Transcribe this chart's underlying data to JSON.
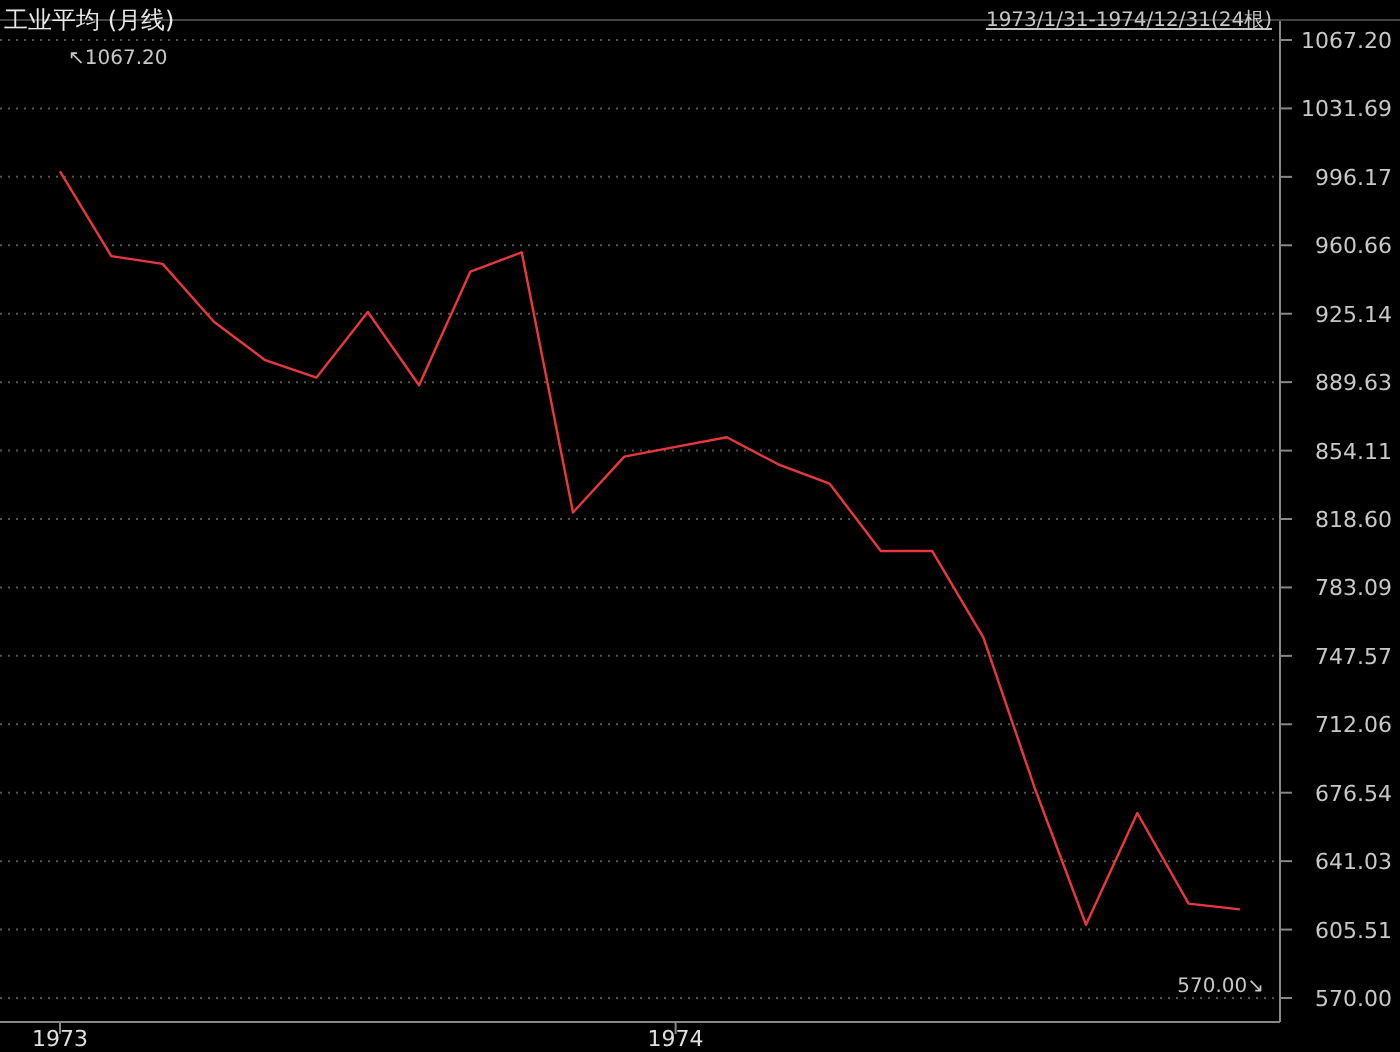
{
  "chart_data": {
    "type": "line",
    "title": "工业平均 (月线)",
    "annotations": [
      "1973/1/31-1974/12/31(24根)",
      "↖1067.20",
      "570.00↘"
    ],
    "categories": [
      "1973",
      null,
      null,
      null,
      null,
      null,
      null,
      null,
      null,
      null,
      null,
      null,
      "1974",
      null,
      null,
      null,
      null,
      null,
      null,
      null,
      null,
      null,
      null,
      null
    ],
    "series": [
      {
        "color": "#e8383d",
        "values": [
          999,
          955,
          951,
          921,
          901,
          892,
          926,
          888,
          947,
          957,
          822,
          851,
          856,
          861,
          847,
          837,
          802,
          802,
          757,
          679,
          608,
          666,
          619,
          616
        ]
      }
    ],
    "ylim": [
      570,
      1067.2
    ],
    "yticks": [
      {
        "value": 570,
        "label": "570.00"
      },
      {
        "value": 605.51,
        "label": "605.51"
      },
      {
        "value": 641.03,
        "label": "641.03"
      },
      {
        "value": 676.54,
        "label": "676.54"
      },
      {
        "value": 712.06,
        "label": "712.06"
      },
      {
        "value": 747.57,
        "label": "747.57"
      },
      {
        "value": 783.09,
        "label": "783.09"
      },
      {
        "value": 818.6,
        "label": "818.60"
      },
      {
        "value": 854.11,
        "label": "854.11"
      },
      {
        "value": 889.63,
        "label": "889.63"
      },
      {
        "value": 925.14,
        "label": "925.14"
      },
      {
        "value": 960.66,
        "label": "960.66"
      },
      {
        "value": 996.17,
        "label": "996.17"
      },
      {
        "value": 1031.69,
        "label": "1031.69"
      },
      {
        "value": 1067.2,
        "label": "1067.20"
      }
    ],
    "grid": "y"
  }
}
